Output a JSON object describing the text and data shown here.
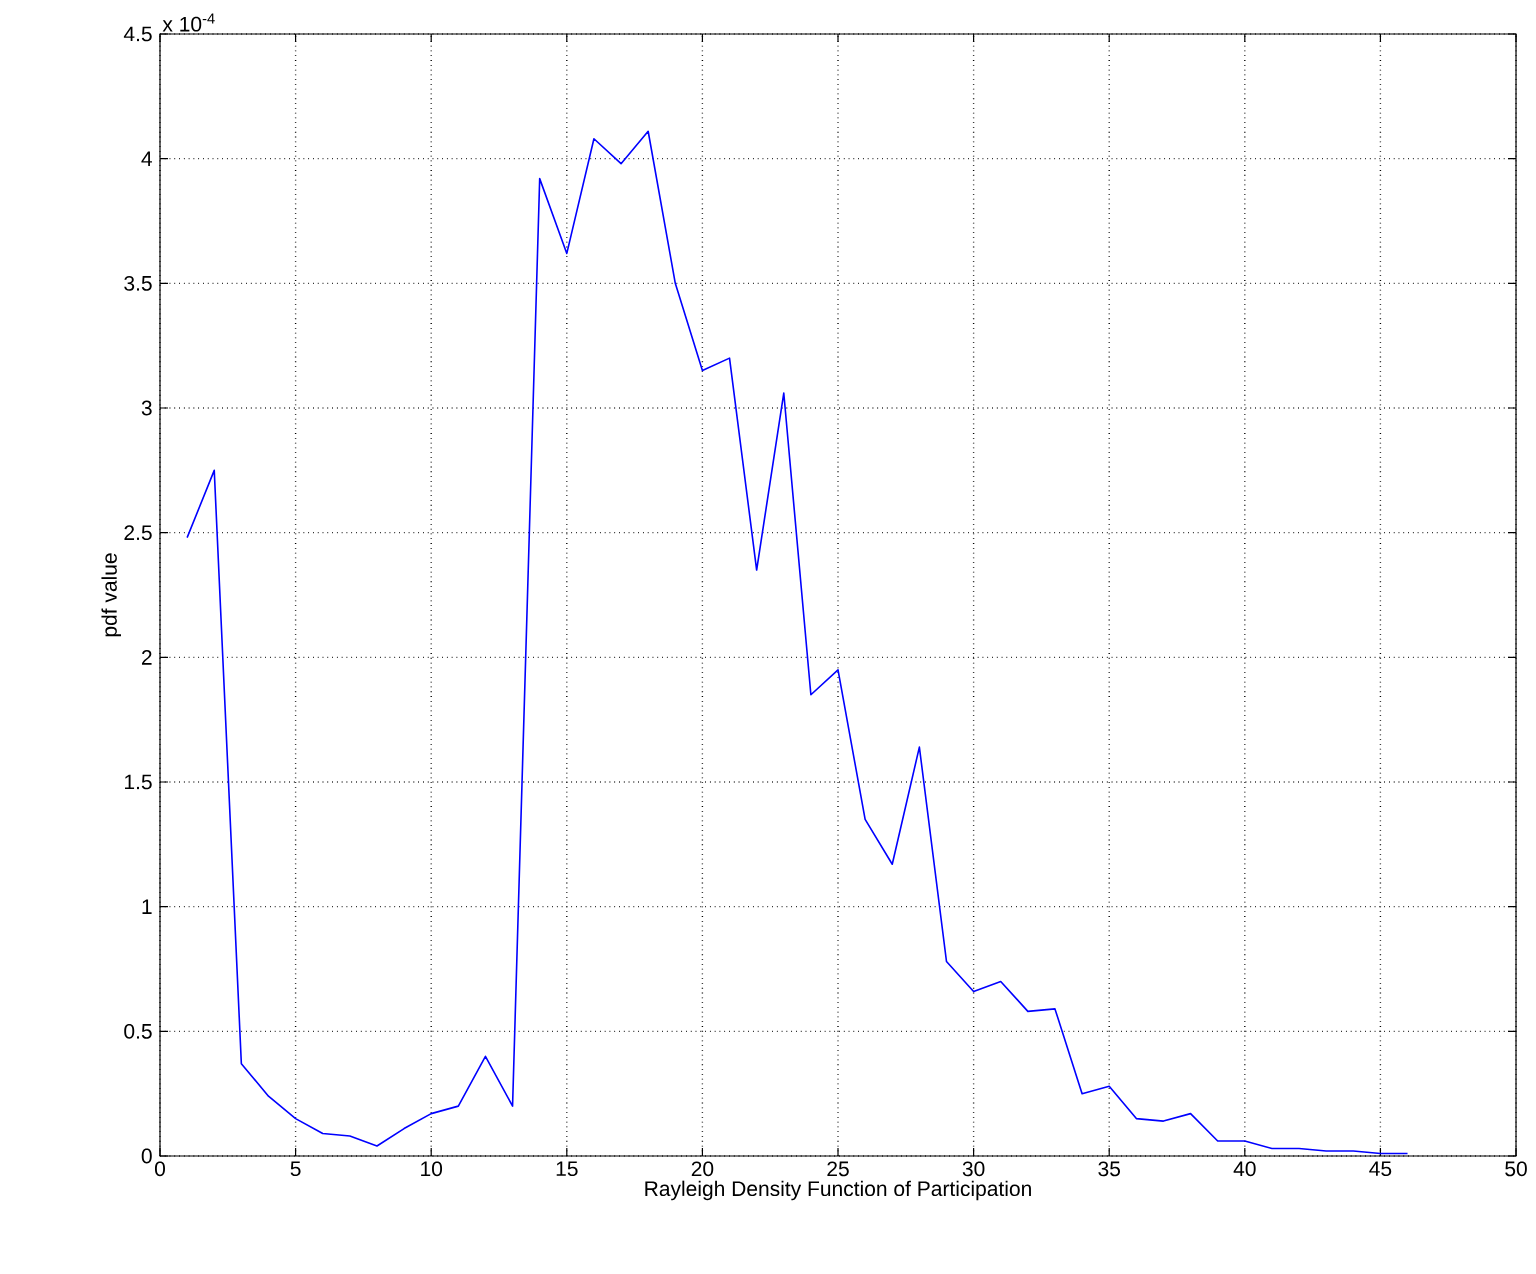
{
  "chart_data": {
    "type": "line",
    "xlabel": "Rayleigh Density Function of Participation",
    "ylabel": "pdf value",
    "annotations": [
      "x 10$^{-4}$"
    ],
    "x": [
      1,
      2,
      3,
      4,
      5,
      6,
      7,
      8,
      9,
      10,
      11,
      12,
      13,
      14,
      15,
      16,
      17,
      18,
      19,
      20,
      21,
      22,
      23,
      24,
      25,
      26,
      27,
      28,
      29,
      30,
      31,
      32,
      33,
      34,
      35,
      36,
      37,
      38,
      39,
      40,
      41,
      42,
      43,
      44,
      45,
      46
    ],
    "series": [
      {
        "color": "#0000ff",
        "values": [
          2.48,
          2.75,
          0.37,
          0.24,
          0.15,
          0.09,
          0.08,
          0.04,
          0.11,
          0.17,
          0.2,
          0.4,
          0.2,
          3.92,
          3.62,
          4.08,
          3.98,
          4.11,
          3.5,
          3.15,
          3.2,
          2.35,
          3.06,
          1.85,
          1.95,
          1.35,
          1.17,
          1.64,
          0.78,
          0.66,
          0.7,
          0.58,
          0.59,
          0.25,
          0.28,
          0.15,
          0.14,
          0.17,
          0.06,
          0.06,
          0.03,
          0.03,
          0.02,
          0.02,
          0.01,
          0.01
        ]
      }
    ],
    "xlim": [
      0,
      50
    ],
    "xticks": [
      0,
      5,
      10,
      15,
      20,
      25,
      30,
      35,
      40,
      45,
      50
    ],
    "ylim": [
      0,
      4.5
    ],
    "yticks": [
      0,
      0.5,
      1,
      1.5,
      2,
      2.5,
      3,
      3.5,
      4,
      4.5
    ],
    "grid": true,
    "marker": "none",
    "line_style": "solid"
  }
}
